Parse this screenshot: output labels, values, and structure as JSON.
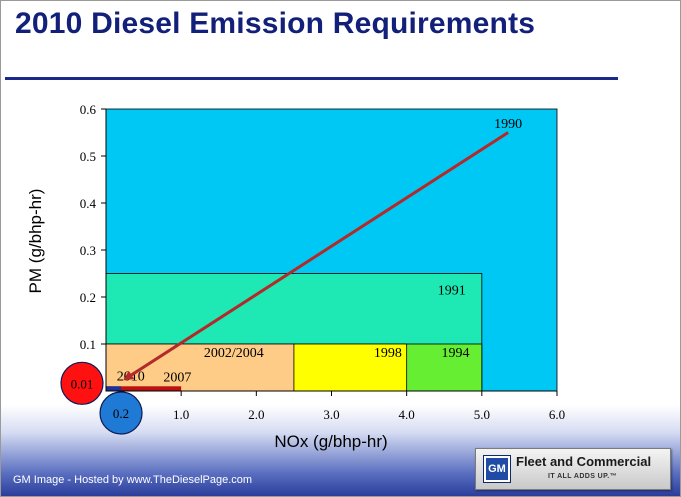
{
  "slide": {
    "title": "2010 Diesel Emission Requirements",
    "footer_credit": "GM Image - Hosted by www.TheDieselPage.com",
    "logo": {
      "mark": "GM",
      "title": "Fleet and Commercial",
      "tagline": "IT ALL ADDS UP.™"
    }
  },
  "chart_data": {
    "type": "area",
    "xlabel": "NOx (g/bhp-hr)",
    "ylabel": "PM (g/bhp-hr)",
    "xlim": [
      0,
      6.0
    ],
    "ylim": [
      0,
      0.6
    ],
    "x_ticks": [
      "1.0",
      "2.0",
      "3.0",
      "4.0",
      "5.0",
      "6.0"
    ],
    "y_ticks": [
      "0.1",
      "0.2",
      "0.3",
      "0.4",
      "0.5",
      "0.6"
    ],
    "grid": false,
    "regions": [
      {
        "label": "1990",
        "nox": 6.0,
        "pm": 0.6,
        "color": "#00c8f5"
      },
      {
        "label": "1991",
        "nox": 5.0,
        "pm": 0.25,
        "color": "#1ee8b4"
      },
      {
        "label": "1994",
        "nox": 5.0,
        "pm": 0.1,
        "color": "#66ee33"
      },
      {
        "label": "1998",
        "nox": 4.0,
        "pm": 0.1,
        "color": "#ffff00"
      },
      {
        "label": "2002/2004",
        "nox": 2.5,
        "pm": 0.1,
        "color": "#ffcc88"
      },
      {
        "label": "2007",
        "nox": 1.0,
        "pm": 0.01,
        "color": "#bb1111"
      },
      {
        "label": "2010",
        "nox": 0.2,
        "pm": 0.01,
        "color": "#1a3399"
      }
    ],
    "trend_arrow": {
      "from": [
        5.35,
        0.55
      ],
      "to": [
        0.25,
        0.025
      ],
      "color": "#b22a2a"
    },
    "badges": [
      {
        "label": "0.01",
        "axis": "y",
        "value": 0.01,
        "color": "#ff1111"
      },
      {
        "label": "0.2",
        "axis": "x",
        "value": 0.2,
        "color": "#1f7ad6"
      }
    ]
  }
}
